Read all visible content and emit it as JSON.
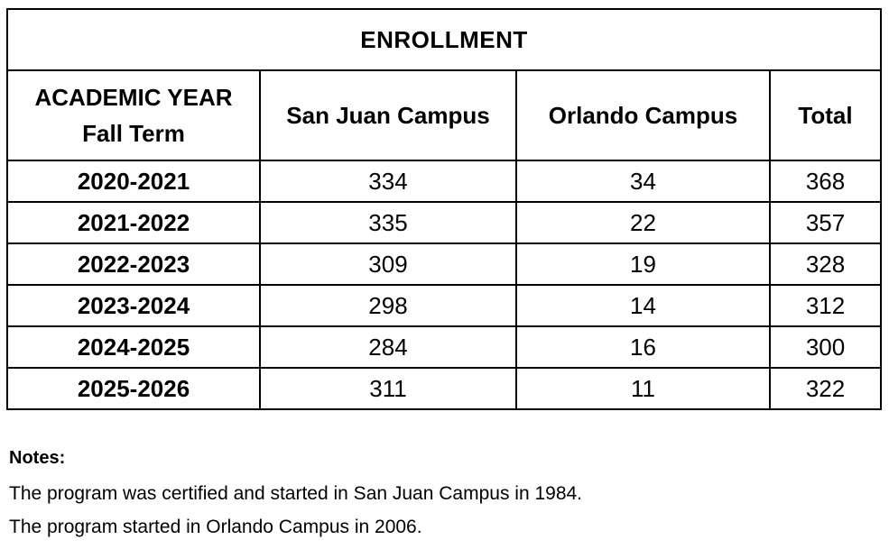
{
  "table": {
    "title": "ENROLLMENT",
    "header": {
      "academic_year_line1": "ACADEMIC YEAR",
      "academic_year_line2": "Fall Term",
      "san_juan": "San Juan Campus",
      "orlando": "Orlando Campus",
      "total": "Total"
    },
    "rows": [
      [
        "2020-2021",
        "334",
        "34",
        "368"
      ],
      [
        "2021-2022",
        "335",
        "22",
        "357"
      ],
      [
        "2022-2023",
        "309",
        "19",
        "328"
      ],
      [
        "2023-2024",
        "298",
        "14",
        "312"
      ],
      [
        "2024-2025",
        "284",
        "16",
        "300"
      ],
      [
        "2025-2026",
        "311",
        "11",
        "322"
      ]
    ]
  },
  "notes": {
    "label": "Notes:",
    "lines": [
      "The program was certified and started in San Juan Campus in 1984.",
      "The program started in Orlando Campus in 2006."
    ]
  },
  "colors": {
    "text": "#000000",
    "border": "#000000",
    "background": "#ffffff"
  }
}
